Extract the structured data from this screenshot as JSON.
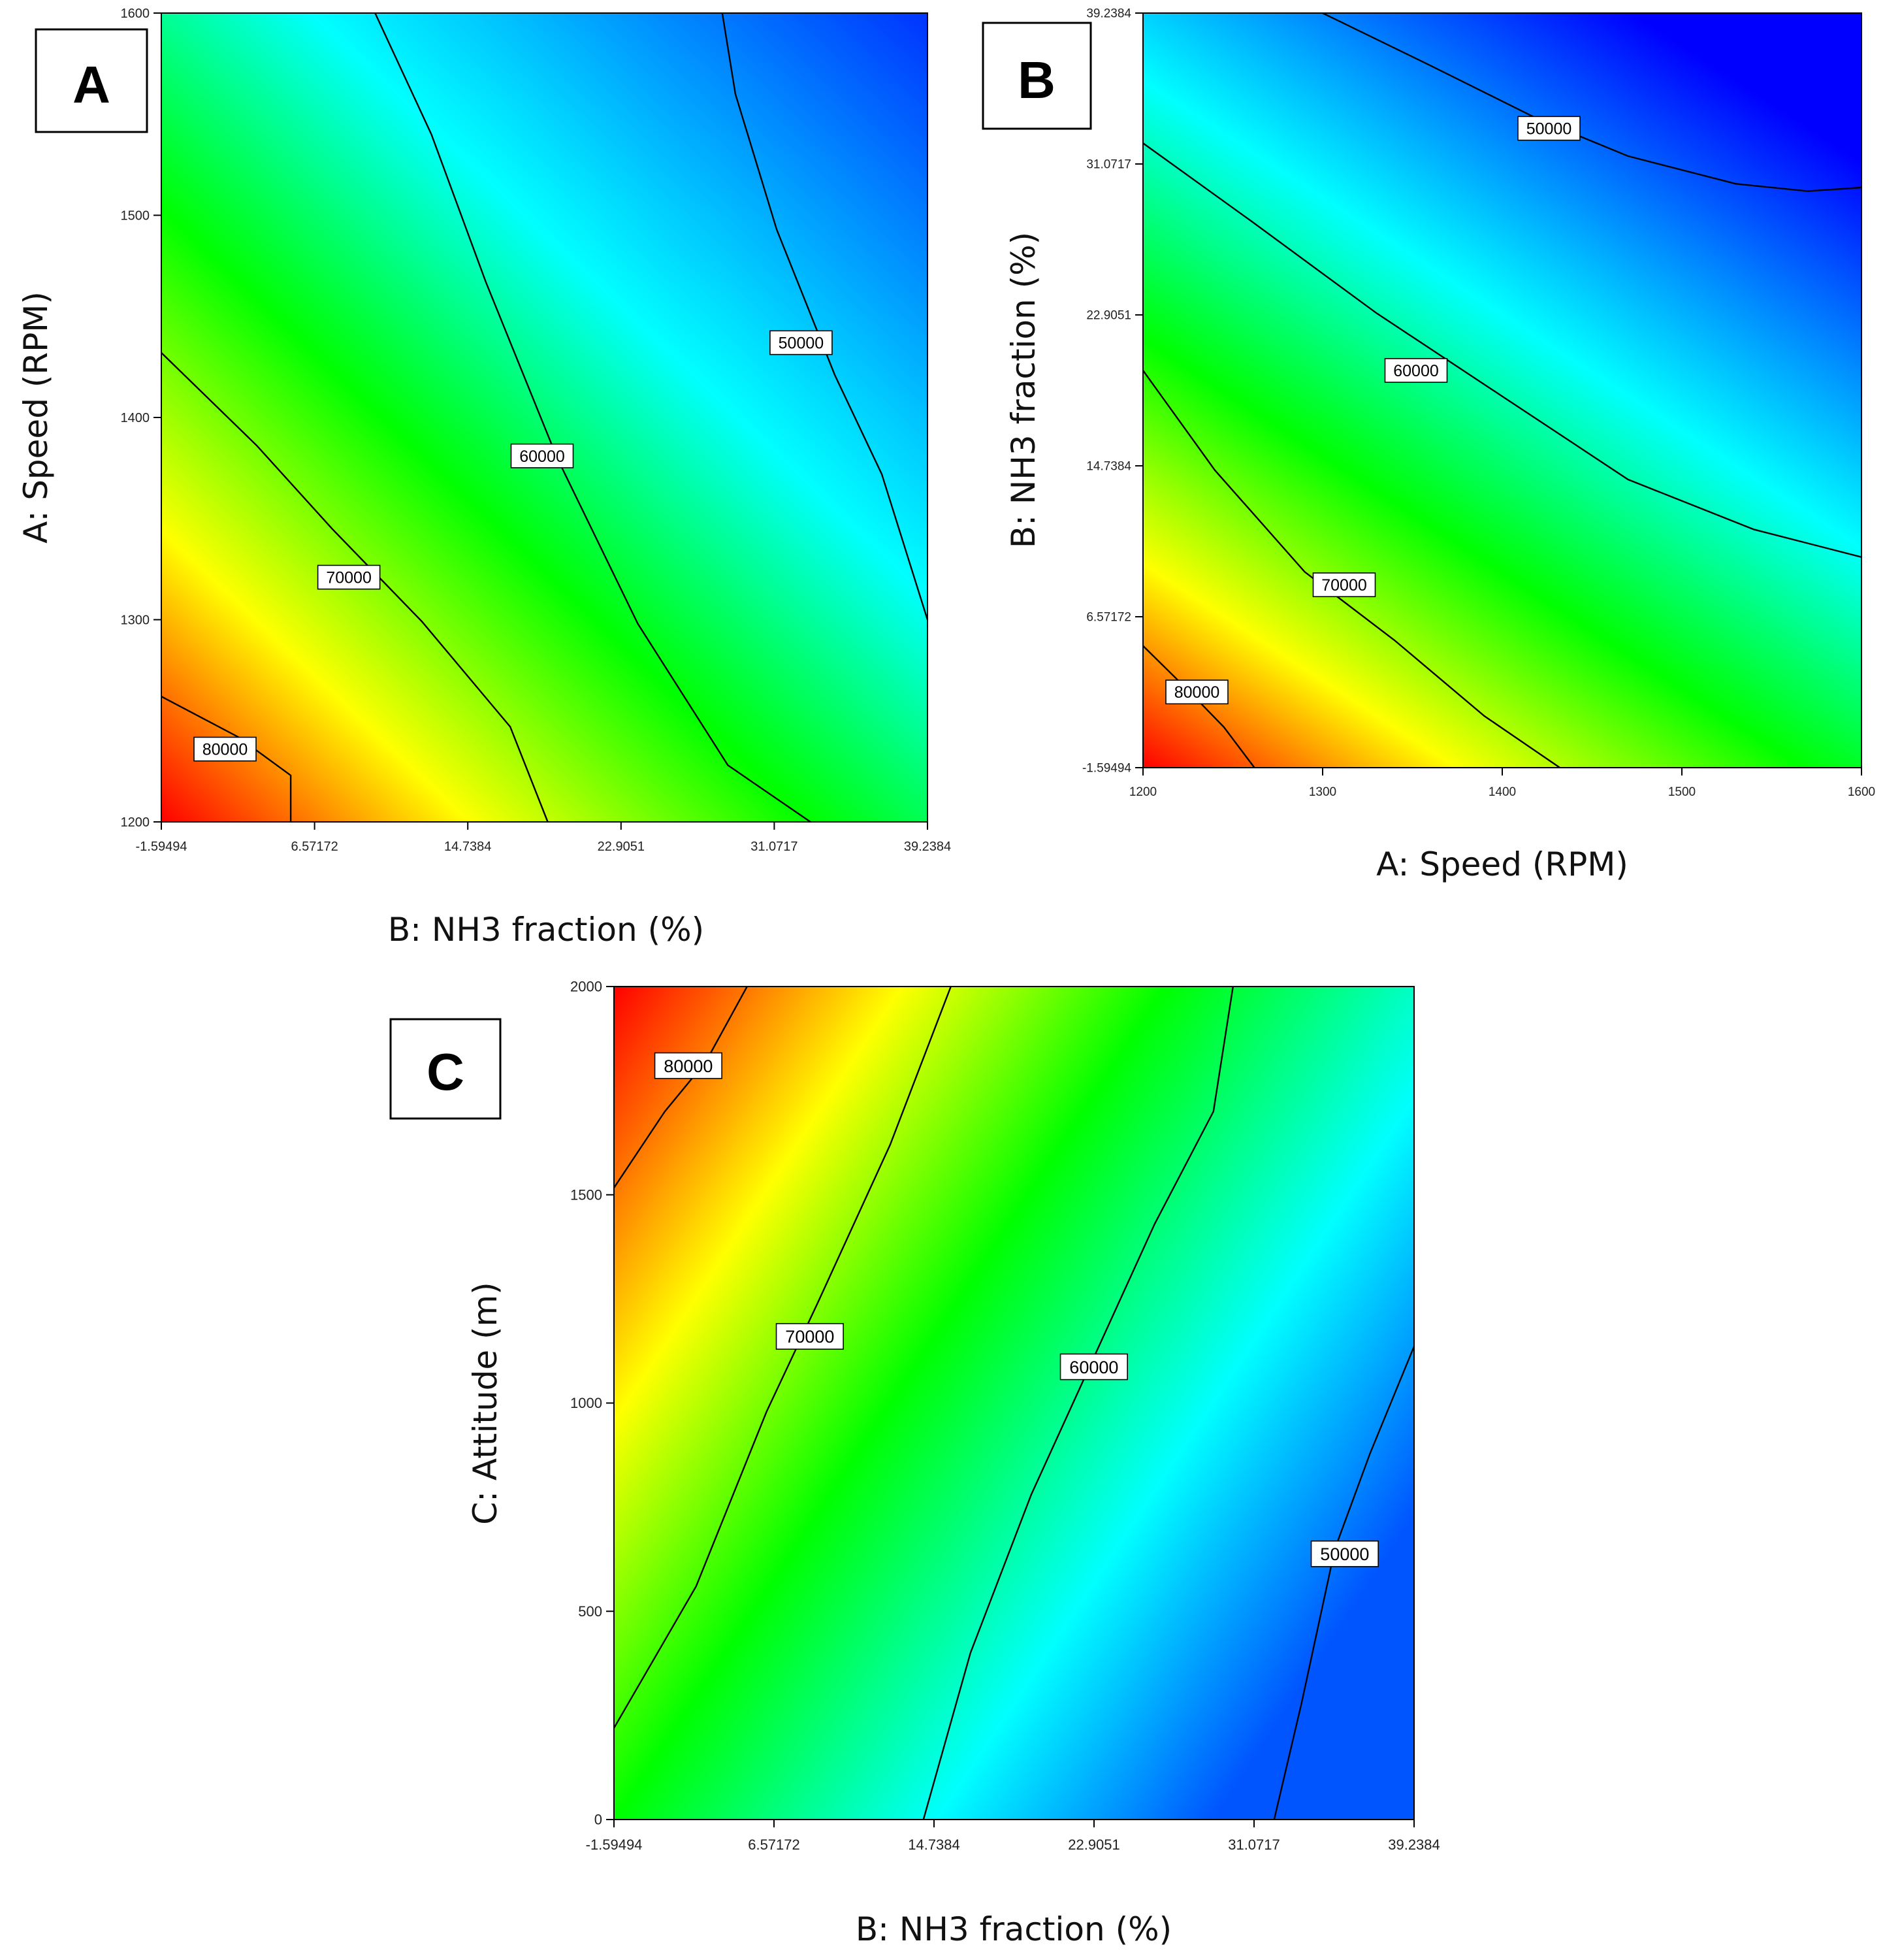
{
  "chart_data": [
    {
      "type": "contour",
      "panel_label": "A",
      "xlabel": "B: NH3 fraction (%)",
      "ylabel": "A: Speed (RPM)",
      "xlim": [
        -1.59494,
        39.2384
      ],
      "ylim": [
        1200,
        1600
      ],
      "x_ticks": [
        "-1.59494",
        "6.57172",
        "14.7384",
        "22.9051",
        "31.0717",
        "39.2384"
      ],
      "y_ticks": [
        "1200",
        "1300",
        "1400",
        "1500",
        "1600"
      ],
      "colormap": "red-yellow-green-cyan-blue",
      "color_range": [
        45000,
        85000
      ],
      "contours": [
        {
          "level": 80000,
          "label": "80000",
          "points": [
            [
              -1.59,
              1262
            ],
            [
              2.5,
              1242
            ],
            [
              5.3,
              1223
            ],
            [
              5.3,
              1200
            ]
          ],
          "label_at": [
            1.8,
            1236
          ]
        },
        {
          "level": 70000,
          "label": "70000",
          "points": [
            [
              -1.59,
              1432
            ],
            [
              3.5,
              1386
            ],
            [
              7.5,
              1345
            ],
            [
              12.3,
              1299
            ],
            [
              17.0,
              1247
            ],
            [
              19.0,
              1200
            ]
          ],
          "label_at": [
            8.4,
            1321
          ]
        },
        {
          "level": 60000,
          "label": "60000",
          "points": [
            [
              9.8,
              1600
            ],
            [
              12.8,
              1540
            ],
            [
              15.7,
              1467
            ],
            [
              19.5,
              1380
            ],
            [
              23.8,
              1298
            ],
            [
              28.6,
              1228
            ],
            [
              33.0,
              1200
            ]
          ],
          "label_at": [
            18.7,
            1381
          ]
        },
        {
          "level": 50000,
          "label": "50000",
          "points": [
            [
              28.3,
              1600
            ],
            [
              29.0,
              1560
            ],
            [
              31.2,
              1493
            ],
            [
              34.3,
              1421
            ],
            [
              36.8,
              1372
            ],
            [
              39.24,
              1300
            ]
          ],
          "label_at": [
            32.5,
            1437
          ]
        }
      ]
    },
    {
      "type": "contour",
      "panel_label": "B",
      "xlabel": "A: Speed (RPM)",
      "ylabel": "B: NH3 fraction (%)",
      "xlim": [
        1200,
        1600
      ],
      "ylim": [
        -1.59494,
        39.2384
      ],
      "x_ticks": [
        "1200",
        "1300",
        "1400",
        "1500",
        "1600"
      ],
      "y_ticks": [
        "-1.59494",
        "6.57172",
        "14.7384",
        "22.9051",
        "31.0717",
        "39.2384"
      ],
      "colormap": "red-yellow-green-cyan-blue",
      "color_range": [
        45000,
        85000
      ],
      "contours": [
        {
          "level": 80000,
          "label": "80000",
          "points": [
            [
              1200,
              5.0
            ],
            [
              1225,
              2.6
            ],
            [
              1245,
              0.6
            ],
            [
              1262,
              -1.59
            ]
          ],
          "label_at": [
            1230,
            2.5
          ]
        },
        {
          "level": 70000,
          "label": "70000",
          "points": [
            [
              1200,
              19.9
            ],
            [
              1240,
              14.5
            ],
            [
              1290,
              9.0
            ],
            [
              1340,
              5.3
            ],
            [
              1390,
              1.2
            ],
            [
              1432,
              -1.59
            ]
          ],
          "label_at": [
            1312,
            8.3
          ]
        },
        {
          "level": 60000,
          "label": "60000",
          "points": [
            [
              1200,
              32.2
            ],
            [
              1260,
              28.0
            ],
            [
              1330,
              23.0
            ],
            [
              1400,
              18.5
            ],
            [
              1470,
              14.0
            ],
            [
              1540,
              11.3
            ],
            [
              1600,
              9.8
            ]
          ],
          "label_at": [
            1352,
            19.9
          ]
        },
        {
          "level": 50000,
          "label": "50000",
          "points": [
            [
              1300,
              39.24
            ],
            [
              1360,
              36.4
            ],
            [
              1420,
              33.5
            ],
            [
              1470,
              31.5
            ],
            [
              1530,
              30.0
            ],
            [
              1570,
              29.6
            ],
            [
              1600,
              29.8
            ]
          ],
          "label_at": [
            1426,
            33.0
          ]
        }
      ]
    },
    {
      "type": "contour",
      "panel_label": "C",
      "xlabel": "B: NH3 fraction (%)",
      "ylabel": "C: Attitude (m)",
      "xlim": [
        -1.59494,
        39.2384
      ],
      "ylim": [
        0,
        2000
      ],
      "x_ticks": [
        "-1.59494",
        "6.57172",
        "14.7384",
        "22.9051",
        "31.0717",
        "39.2384"
      ],
      "y_ticks": [
        "0",
        "500",
        "1000",
        "1500",
        "2000"
      ],
      "colormap": "red-yellow-green-cyan-blue",
      "color_range": [
        45000,
        85000
      ],
      "contours": [
        {
          "level": 80000,
          "label": "80000",
          "points": [
            [
              -1.59,
              1517
            ],
            [
              1.0,
              1700
            ],
            [
              3.1,
              1820
            ],
            [
              5.2,
              2000
            ]
          ],
          "label_at": [
            2.2,
            1810
          ]
        },
        {
          "level": 70000,
          "label": "70000",
          "points": [
            [
              -1.59,
              220
            ],
            [
              2.6,
              560
            ],
            [
              6.2,
              980
            ],
            [
              8.8,
              1240
            ],
            [
              12.5,
              1620
            ],
            [
              15.6,
              2000
            ]
          ],
          "label_at": [
            8.4,
            1160
          ]
        },
        {
          "level": 60000,
          "label": "60000",
          "points": [
            [
              14.2,
              0
            ],
            [
              16.6,
              400
            ],
            [
              19.7,
              780
            ],
            [
              22.9,
              1110
            ],
            [
              26.0,
              1430
            ],
            [
              29.0,
              1700
            ],
            [
              30.0,
              2000
            ]
          ],
          "label_at": [
            22.9,
            1087
          ]
        },
        {
          "level": 50000,
          "label": "50000",
          "points": [
            [
              32.1,
              0
            ],
            [
              33.5,
              280
            ],
            [
              35.2,
              650
            ],
            [
              37.0,
              880
            ],
            [
              39.24,
              1136
            ]
          ],
          "label_at": [
            35.7,
            638
          ]
        }
      ]
    }
  ]
}
